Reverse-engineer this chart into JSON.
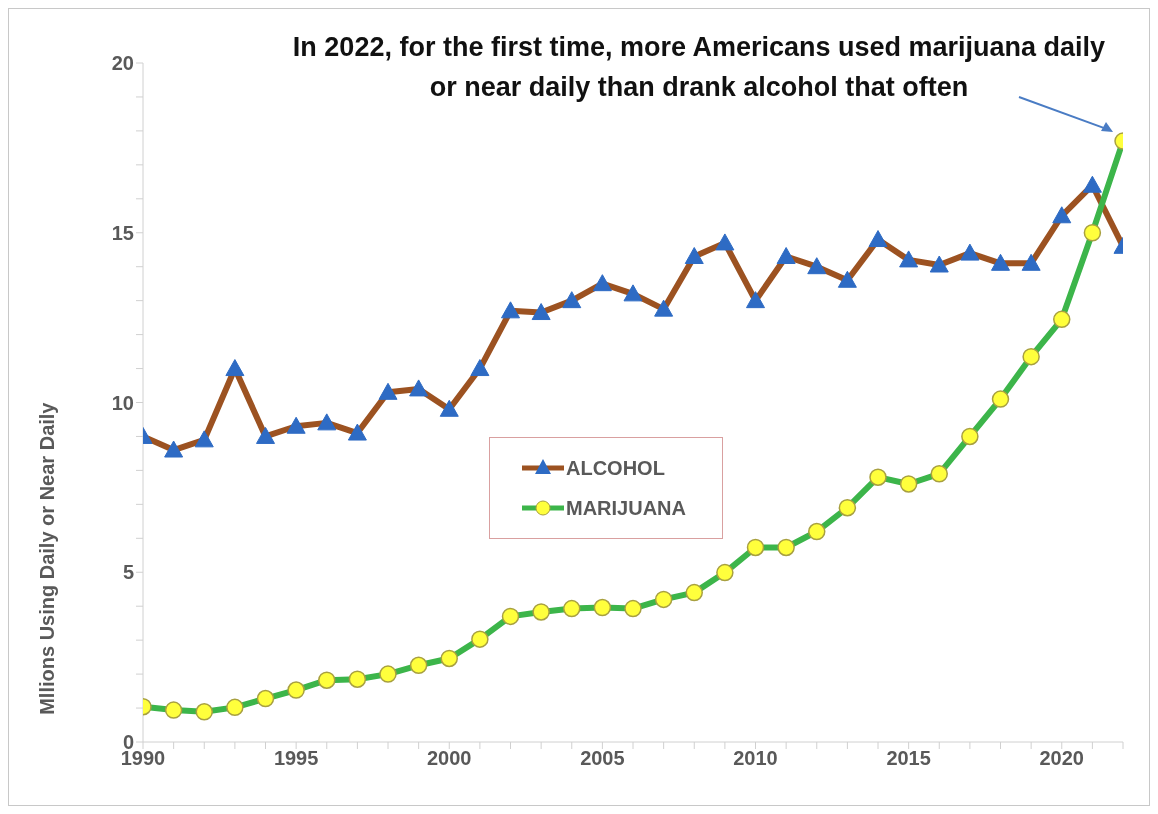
{
  "chart_data": {
    "type": "line",
    "ylabel": "Mllions  Using Daily or Near Daily",
    "annotations": [
      {
        "text": "In 2022, for the first time, more Americans used marijuana daily or near daily than drank alcohol that often",
        "x": 2022,
        "y": 17.7
      }
    ],
    "x": [
      1990,
      1991,
      1992,
      1993,
      1994,
      1995,
      1996,
      1997,
      1998,
      1999,
      2000,
      2001,
      2002,
      2003,
      2004,
      2005,
      2006,
      2007,
      2008,
      2009,
      2010,
      2011,
      2012,
      2013,
      2014,
      2015,
      2016,
      2017,
      2018,
      2019,
      2020,
      2021,
      2022
    ],
    "series": [
      {
        "name": "ALCOHOL",
        "color": "#9c5221",
        "marker": "triangle",
        "values": [
          9.0,
          8.6,
          8.9,
          11.0,
          9.0,
          9.3,
          9.4,
          9.1,
          10.3,
          10.4,
          9.8,
          11.0,
          12.7,
          12.65,
          13.0,
          13.5,
          13.2,
          12.75,
          14.3,
          14.7,
          13.0,
          14.3,
          14.0,
          13.6,
          14.8,
          14.2,
          14.05,
          14.4,
          14.1,
          14.1,
          15.5,
          16.4,
          14.6
        ]
      },
      {
        "name": "MARIJUANA",
        "color": "#3cb54a",
        "marker": "circle",
        "values": [
          1.04,
          0.94,
          0.89,
          1.02,
          1.28,
          1.53,
          1.82,
          1.85,
          2.0,
          2.26,
          2.46,
          3.03,
          3.7,
          3.83,
          3.93,
          3.96,
          3.93,
          4.2,
          4.4,
          4.99,
          5.73,
          5.73,
          6.2,
          6.9,
          7.8,
          7.6,
          7.9,
          9.0,
          10.1,
          11.35,
          12.45,
          15.0,
          17.7
        ]
      }
    ],
    "xlim": [
      1990,
      2022
    ],
    "xticks": [
      1990,
      {
        "value": 1991,
        "label": null
      },
      {
        "value": 1992,
        "label": null
      },
      {
        "value": 1993,
        "label": null
      },
      {
        "value": 1994,
        "label": null
      },
      1995,
      {
        "value": 1996,
        "label": null
      },
      {
        "value": 1997,
        "label": null
      },
      {
        "value": 1998,
        "label": null
      },
      {
        "value": 1999,
        "label": null
      },
      2000,
      {
        "value": 2001,
        "label": null
      },
      {
        "value": 2002,
        "label": null
      },
      {
        "value": 2003,
        "label": null
      },
      {
        "value": 2004,
        "label": null
      },
      2005,
      {
        "value": 2006,
        "label": null
      },
      {
        "value": 2007,
        "label": null
      },
      {
        "value": 2008,
        "label": null
      },
      {
        "value": 2009,
        "label": null
      },
      2010,
      {
        "value": 2011,
        "label": null
      },
      {
        "value": 2012,
        "label": null
      },
      {
        "value": 2013,
        "label": null
      },
      {
        "value": 2014,
        "label": null
      },
      2015,
      {
        "value": 2016,
        "label": null
      },
      {
        "value": 2017,
        "label": null
      },
      {
        "value": 2018,
        "label": null
      },
      {
        "value": 2019,
        "label": null
      },
      2020,
      {
        "value": 2021,
        "label": null
      },
      {
        "value": 2022,
        "label": null
      }
    ],
    "ylim": [
      0,
      20
    ],
    "yticks": [
      0,
      {
        "value": 1,
        "label": null
      },
      {
        "value": 2,
        "label": null
      },
      {
        "value": 3,
        "label": null
      },
      {
        "value": 4,
        "label": null
      },
      5,
      {
        "value": 6,
        "label": null
      },
      {
        "value": 7,
        "label": null
      },
      {
        "value": 8,
        "label": null
      },
      {
        "value": 9,
        "label": null
      },
      10,
      {
        "value": 11,
        "label": null
      },
      {
        "value": 12,
        "label": null
      },
      {
        "value": 13,
        "label": null
      },
      {
        "value": 14,
        "label": null
      },
      15,
      {
        "value": 16,
        "label": null
      },
      {
        "value": 17,
        "label": null
      },
      {
        "value": 18,
        "label": null
      },
      {
        "value": 19,
        "label": null
      },
      20
    ],
    "grid": false,
    "legend": "center"
  }
}
